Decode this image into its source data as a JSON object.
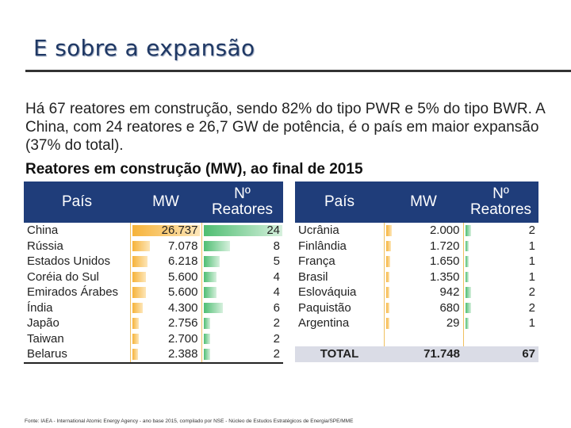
{
  "title": "E sobre a expansão",
  "intro": "Há 67 reatores em construção, sendo 82% do tipo PWR e 5% do tipo BWR. A China, com 24 reatores e 26,7 GW de potência, é o país em maior expansão (37% do total).",
  "subtitle": "Reatores em construção (MW), ao final de 2015",
  "headers": {
    "country": "País",
    "mw": "MW",
    "reactors": "Nº Reatores"
  },
  "chart_data": {
    "type": "table",
    "columns": [
      "País",
      "MW",
      "Nº Reatores"
    ],
    "rows_left": [
      {
        "country": "China",
        "mw": "26.737",
        "mw_value": 26737,
        "reactors": "24",
        "reactors_value": 24
      },
      {
        "country": "Rússia",
        "mw": "7.078",
        "mw_value": 7078,
        "reactors": "8",
        "reactors_value": 8
      },
      {
        "country": "Estados Unidos",
        "mw": "6.218",
        "mw_value": 6218,
        "reactors": "5",
        "reactors_value": 5
      },
      {
        "country": "Coréia do Sul",
        "mw": "5.600",
        "mw_value": 5600,
        "reactors": "4",
        "reactors_value": 4
      },
      {
        "country": "Emirados Árabes",
        "mw": "5.600",
        "mw_value": 5600,
        "reactors": "4",
        "reactors_value": 4
      },
      {
        "country": "Índia",
        "mw": "4.300",
        "mw_value": 4300,
        "reactors": "6",
        "reactors_value": 6
      },
      {
        "country": "Japão",
        "mw": "2.756",
        "mw_value": 2756,
        "reactors": "2",
        "reactors_value": 2
      },
      {
        "country": "Taiwan",
        "mw": "2.700",
        "mw_value": 2700,
        "reactors": "2",
        "reactors_value": 2
      },
      {
        "country": "Belarus",
        "mw": "2.388",
        "mw_value": 2388,
        "reactors": "2",
        "reactors_value": 2
      }
    ],
    "rows_right": [
      {
        "country": "Ucrânia",
        "mw": "2.000",
        "mw_value": 2000,
        "reactors": "2",
        "reactors_value": 2
      },
      {
        "country": "Finlândia",
        "mw": "1.720",
        "mw_value": 1720,
        "reactors": "1",
        "reactors_value": 1
      },
      {
        "country": "França",
        "mw": "1.650",
        "mw_value": 1650,
        "reactors": "1",
        "reactors_value": 1
      },
      {
        "country": "Brasil",
        "mw": "1.350",
        "mw_value": 1350,
        "reactors": "1",
        "reactors_value": 1
      },
      {
        "country": "Eslováquia",
        "mw": "942",
        "mw_value": 942,
        "reactors": "2",
        "reactors_value": 2
      },
      {
        "country": "Paquistão",
        "mw": "680",
        "mw_value": 680,
        "reactors": "2",
        "reactors_value": 2
      },
      {
        "country": "Argentina",
        "mw": "29",
        "mw_value": 29,
        "reactors": "1",
        "reactors_value": 1
      }
    ],
    "total": {
      "label": "TOTAL",
      "mw": "71.748",
      "reactors": "67"
    }
  },
  "colors": {
    "header_bg": "#1f3d7a",
    "mw_bar": "#f6b33a",
    "reactor_bar": "#4fbe72",
    "title": "#1f3864"
  },
  "source": "Fonte: IAEA - International Atomic Energy Agency - ano base 2015, compilado por NSE - Núcleo de Estudos Estratégicos de Energia/SPE/MME"
}
